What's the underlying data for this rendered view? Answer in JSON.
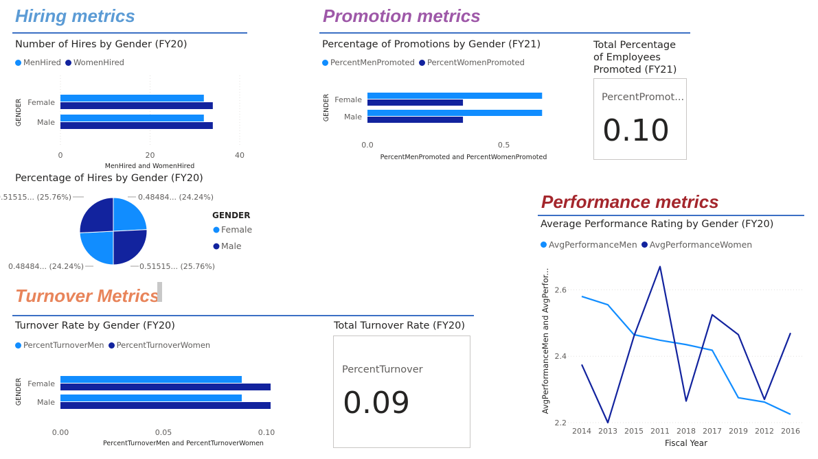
{
  "colors": {
    "men": "#118dff",
    "women": "#12239e",
    "grid": "#e1dfdd",
    "hiring": "#5b9bd5",
    "promotion": "#9e58a8",
    "turnover": "#e8845a",
    "performance": "#a4262c"
  },
  "sections": {
    "hiring": "Hiring metrics",
    "promotion": "Promotion metrics",
    "turnover": "Turnover Metrics",
    "performance": "Performance metrics"
  },
  "hires_bar": {
    "title": "Number of Hires by Gender (FY20)",
    "legend": [
      "MenHired",
      "WomenHired"
    ],
    "ylabel": "GENDER",
    "xlabel": "MenHired and WomenHired",
    "ticks": [
      "0",
      "20",
      "40"
    ]
  },
  "hires_pie": {
    "title": "Percentage of Hires by Gender (FY20)",
    "legend_title": "GENDER",
    "legend": [
      "Female",
      "Male"
    ],
    "labels": {
      "top_left": "0.51515... (25.76%)",
      "top_right": "0.48484... (24.24%)",
      "bottom_left": "0.48484... (24.24%)",
      "bottom_right": "0.51515... (25.76%)"
    }
  },
  "promo_bar": {
    "title": "Percentage of Promotions by Gender (FY21)",
    "legend": [
      "PercentMenPromoted",
      "PercentWomenPromoted"
    ],
    "ylabel": "GENDER",
    "xlabel": "PercentMenPromoted and PercentWomenPromoted",
    "ticks": [
      "0.0",
      "0.5"
    ]
  },
  "promo_card": {
    "title_lines": [
      "Total Percentage",
      "of Employees",
      "Promoted (FY21)"
    ],
    "label": "PercentPromot...",
    "value": "0.10"
  },
  "turnover_bar": {
    "title": "Turnover Rate by Gender (FY20)",
    "legend": [
      "PercentTurnoverMen",
      "PercentTurnoverWomen"
    ],
    "ylabel": "GENDER",
    "xlabel": "PercentTurnoverMen and PercentTurnoverWomen",
    "ticks": [
      "0.00",
      "0.05",
      "0.10"
    ]
  },
  "turnover_card": {
    "title": "Total Turnover Rate (FY20)",
    "label": "PercentTurnover",
    "value": "0.09"
  },
  "perf_line": {
    "title": "Average Performance Rating by Gender (FY20)",
    "legend": [
      "AvgPerformanceMen",
      "AvgPerformanceWomen"
    ],
    "ylabel": "AvgPerformanceMen and AvgPerfor...",
    "xlabel": "Fiscal Year",
    "ticks": [
      "2.2",
      "2.4",
      "2.6"
    ]
  },
  "chart_data": [
    {
      "type": "bar",
      "orientation": "horizontal",
      "title": "Number of Hires by Gender (FY20)",
      "categories": [
        "Female",
        "Male"
      ],
      "series": [
        {
          "name": "MenHired",
          "values": [
            32,
            32
          ]
        },
        {
          "name": "WomenHired",
          "values": [
            34,
            34
          ]
        }
      ],
      "xlabel": "MenHired and WomenHired",
      "ylabel": "GENDER",
      "xlim": [
        0,
        40
      ],
      "grid": true,
      "legend": "top-left"
    },
    {
      "type": "pie",
      "title": "Percentage of Hires by Gender (FY20)",
      "categories": [
        "Female",
        "Male"
      ],
      "slices": [
        {
          "name": "Female",
          "value": 0.48484,
          "percent": 24.24
        },
        {
          "name": "Male",
          "value": 0.51515,
          "percent": 25.76
        },
        {
          "name": "Female",
          "value": 0.48484,
          "percent": 24.24
        },
        {
          "name": "Male",
          "value": 0.51515,
          "percent": 25.76
        }
      ],
      "legend": "right"
    },
    {
      "type": "bar",
      "orientation": "horizontal",
      "title": "Percentage of Promotions by Gender (FY21)",
      "categories": [
        "Female",
        "Male"
      ],
      "series": [
        {
          "name": "PercentMenPromoted",
          "values": [
            0.64,
            0.64
          ]
        },
        {
          "name": "PercentWomenPromoted",
          "values": [
            0.35,
            0.35
          ]
        }
      ],
      "xlabel": "PercentMenPromoted and PercentWomenPromoted",
      "ylabel": "GENDER",
      "xlim": [
        0,
        0.75
      ],
      "grid": false,
      "legend": "top-left"
    },
    {
      "type": "bar",
      "orientation": "horizontal",
      "title": "Turnover Rate by Gender (FY20)",
      "categories": [
        "Female",
        "Male"
      ],
      "series": [
        {
          "name": "PercentTurnoverMen",
          "values": [
            0.088,
            0.088
          ]
        },
        {
          "name": "PercentTurnoverWomen",
          "values": [
            0.102,
            0.102
          ]
        }
      ],
      "xlabel": "PercentTurnoverMen and PercentTurnoverWomen",
      "ylabel": "GENDER",
      "xlim": [
        0,
        0.105
      ],
      "grid": false,
      "legend": "top-left"
    },
    {
      "type": "line",
      "title": "Average Performance Rating by Gender (FY20)",
      "x": [
        "2014",
        "2013",
        "2015",
        "2011",
        "2018",
        "2017",
        "2019",
        "2012",
        "2016"
      ],
      "series": [
        {
          "name": "AvgPerformanceMen",
          "values": [
            2.58,
            2.555,
            2.465,
            2.448,
            2.435,
            2.418,
            2.275,
            2.262,
            2.225
          ]
        },
        {
          "name": "AvgPerformanceWomen",
          "values": [
            2.375,
            2.2,
            2.46,
            2.67,
            2.265,
            2.525,
            2.465,
            2.27,
            2.47
          ]
        }
      ],
      "xlabel": "Fiscal Year",
      "ylabel": "AvgPerformanceMen and AvgPerfor...",
      "ylim": [
        2.2,
        2.7
      ],
      "yticks": [
        2.2,
        2.4,
        2.6
      ],
      "grid": true,
      "legend": "top-left"
    }
  ]
}
